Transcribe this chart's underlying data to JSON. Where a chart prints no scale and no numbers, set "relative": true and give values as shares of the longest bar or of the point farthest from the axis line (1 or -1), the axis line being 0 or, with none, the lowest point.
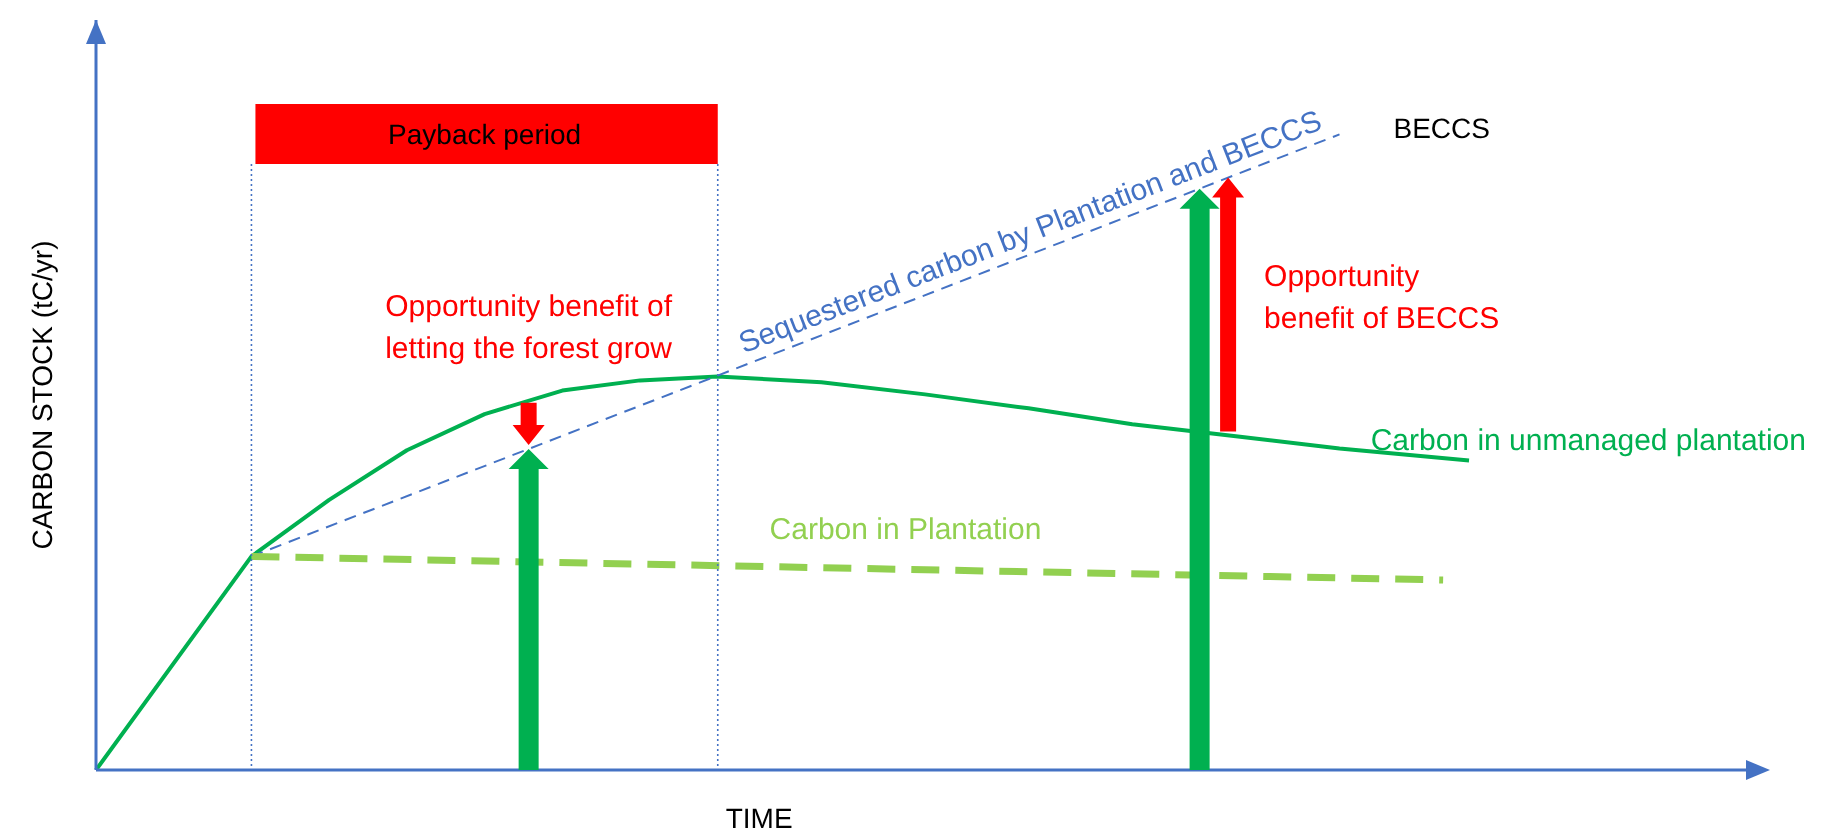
{
  "chart_data": {
    "type": "line",
    "relative": true,
    "xlabel": "TIME",
    "ylabel": "CARBON STOCK (tC/yr)",
    "marker": "none",
    "categories": [
      null,
      null,
      null,
      null,
      null,
      null,
      null,
      null,
      null,
      null,
      null,
      null,
      null,
      null,
      null,
      null,
      null,
      null,
      null,
      null,
      null,
      null,
      null,
      null,
      null,
      null,
      null,
      null,
      null,
      null,
      null,
      null,
      null,
      null,
      null,
      null,
      null,
      null,
      null,
      null,
      null,
      null,
      null,
      null,
      null,
      null,
      null,
      null,
      null,
      null,
      null,
      null,
      null,
      null,
      null,
      null,
      null,
      null,
      null,
      null,
      null,
      null,
      null,
      null,
      null
    ],
    "annotations": [
      "Payback period",
      "Opportunity benefit of letting the forest grow",
      "Opportunity benefit of BECCS",
      "BECCS"
    ],
    "series": [
      {
        "name": "Carbon in unmanaged plantation",
        "color": "#00b050",
        "line_style": "solid",
        "values": [
          0,
          null,
          null,
          null,
          null,
          null,
          0.336,
          null,
          null,
          0.425,
          null,
          null,
          0.503,
          null,
          null,
          0.56,
          null,
          null,
          0.597,
          null,
          null,
          0.613,
          null,
          null,
          0.619,
          null,
          null,
          null,
          0.61,
          null,
          null,
          null,
          0.591,
          null,
          null,
          null,
          0.569,
          null,
          null,
          null,
          0.544,
          null,
          null,
          null,
          0.525,
          null,
          null,
          null,
          0.506,
          null,
          null,
          null,
          null,
          0.487,
          null,
          null,
          null,
          null,
          null,
          null,
          null,
          null,
          null,
          null,
          null
        ]
      },
      {
        "name": "Sequestered carbon by Plantation and BECCS",
        "color": "#4472c4",
        "line_style": "dashed",
        "values": [
          null,
          null,
          null,
          null,
          null,
          null,
          0.336,
          null,
          null,
          null,
          null,
          null,
          null,
          null,
          null,
          null,
          null,
          null,
          null,
          null,
          null,
          null,
          null,
          null,
          null,
          null,
          null,
          null,
          null,
          null,
          null,
          null,
          null,
          null,
          null,
          null,
          null,
          null,
          null,
          null,
          null,
          null,
          null,
          null,
          null,
          null,
          null,
          null,
          1,
          null,
          null,
          null,
          null,
          null,
          null,
          null,
          null,
          null,
          null,
          null,
          null,
          null,
          null,
          null,
          null
        ]
      },
      {
        "name": "Carbon in Plantation",
        "color": "#92d050",
        "line_style": "dashed",
        "values": [
          null,
          null,
          null,
          null,
          null,
          null,
          0.336,
          null,
          null,
          null,
          null,
          null,
          null,
          null,
          null,
          null,
          null,
          null,
          null,
          null,
          null,
          null,
          null,
          null,
          null,
          null,
          null,
          null,
          null,
          null,
          null,
          null,
          null,
          null,
          null,
          null,
          null,
          null,
          null,
          null,
          null,
          null,
          null,
          null,
          null,
          null,
          null,
          null,
          null,
          null,
          null,
          null,
          0.299,
          null,
          null,
          null,
          null,
          null,
          null,
          null,
          null,
          null,
          null,
          null,
          null
        ]
      }
    ]
  }
}
